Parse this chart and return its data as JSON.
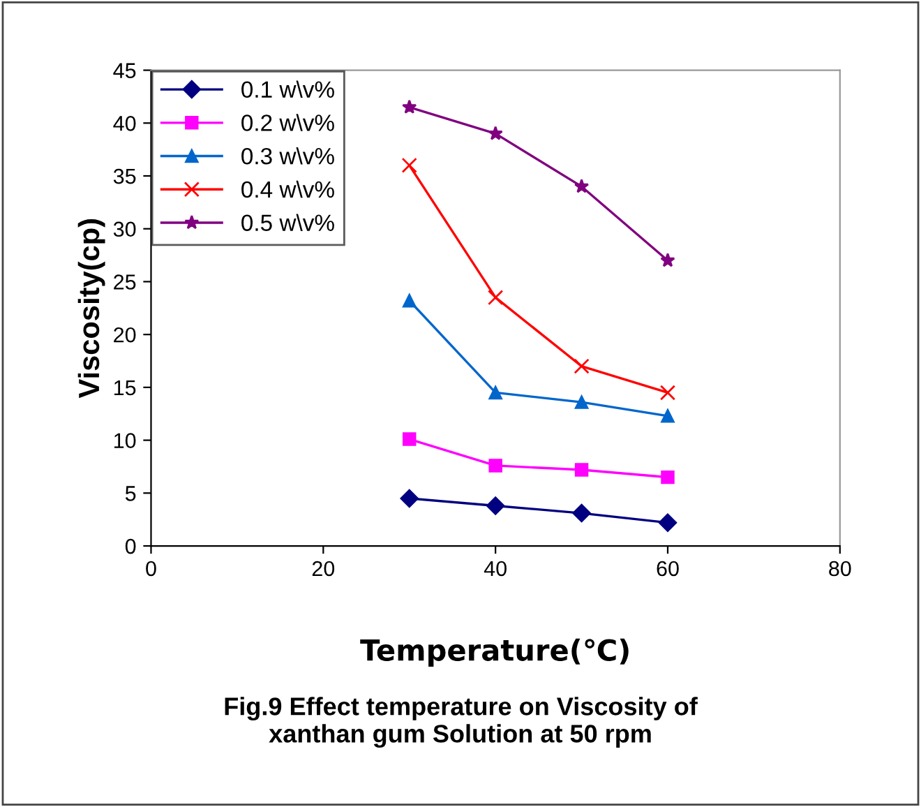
{
  "chart_data": {
    "type": "line",
    "xlabel": "Temperature(℃)",
    "ylabel": "Viscosity(cp)",
    "x": [
      30,
      40,
      50,
      60
    ],
    "series": [
      {
        "name": "0.1 w\\v%",
        "color": "#000080",
        "marker": "diamond",
        "values": [
          4.5,
          3.8,
          3.1,
          2.2
        ]
      },
      {
        "name": "0.2 w\\v%",
        "color": "#ff00ff",
        "marker": "square",
        "values": [
          10.1,
          7.6,
          7.2,
          6.5
        ]
      },
      {
        "name": "0.3 w\\v%",
        "color": "#0066cc",
        "marker": "triangle",
        "values": [
          23.2,
          14.5,
          13.6,
          12.3
        ]
      },
      {
        "name": "0.4 w\\v%",
        "color": "#ff0000",
        "marker": "cross",
        "values": [
          36,
          23.5,
          17,
          14.5
        ]
      },
      {
        "name": "0.5 w\\v%",
        "color": "#800080",
        "marker": "star",
        "values": [
          41.5,
          39,
          34,
          27
        ]
      }
    ],
    "xlim": [
      0,
      80
    ],
    "xticks": [
      0,
      20,
      40,
      60,
      80
    ],
    "ylim": [
      0,
      45
    ],
    "yticks": [
      0,
      5,
      10,
      15,
      20,
      25,
      30,
      35,
      40,
      45
    ],
    "grid": false,
    "legend": "top left",
    "line_style": "solid",
    "annotations": [
      "Fig.9 Effect temperature on Viscosity of\nxanthan gum Solution at 50 rpm"
    ]
  }
}
